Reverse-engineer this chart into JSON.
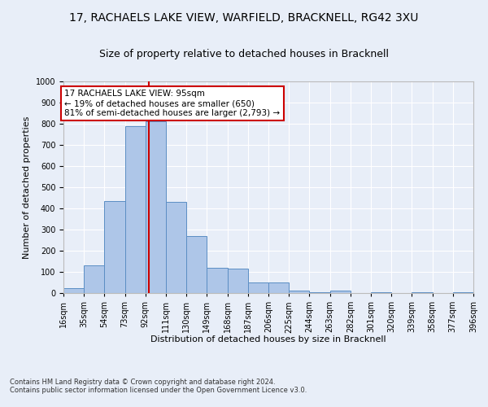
{
  "title1": "17, RACHAELS LAKE VIEW, WARFIELD, BRACKNELL, RG42 3XU",
  "title2": "Size of property relative to detached houses in Bracknell",
  "xlabel": "Distribution of detached houses by size in Bracknell",
  "ylabel": "Number of detached properties",
  "bin_edges": [
    16,
    35,
    54,
    73,
    92,
    111,
    130,
    149,
    168,
    187,
    206,
    225,
    244,
    263,
    282,
    301,
    320,
    339,
    358,
    377,
    396
  ],
  "bin_heights": [
    25,
    130,
    435,
    790,
    810,
    430,
    270,
    120,
    115,
    50,
    50,
    10,
    5,
    10,
    0,
    5,
    0,
    5,
    0,
    5
  ],
  "bar_color": "#aec6e8",
  "bar_edge_color": "#5b8ec4",
  "property_size": 95,
  "red_line_color": "#cc0000",
  "annotation_text": "17 RACHAELS LAKE VIEW: 95sqm\n← 19% of detached houses are smaller (650)\n81% of semi-detached houses are larger (2,793) →",
  "annotation_box_color": "#ffffff",
  "annotation_box_edge": "#cc0000",
  "ylim": [
    0,
    1000
  ],
  "yticks": [
    0,
    100,
    200,
    300,
    400,
    500,
    600,
    700,
    800,
    900,
    1000
  ],
  "tick_labels": [
    "16sqm",
    "35sqm",
    "54sqm",
    "73sqm",
    "92sqm",
    "111sqm",
    "130sqm",
    "149sqm",
    "168sqm",
    "187sqm",
    "206sqm",
    "225sqm",
    "244sqm",
    "263sqm",
    "282sqm",
    "301sqm",
    "320sqm",
    "339sqm",
    "358sqm",
    "377sqm",
    "396sqm"
  ],
  "footer_text": "Contains HM Land Registry data © Crown copyright and database right 2024.\nContains public sector information licensed under the Open Government Licence v3.0.",
  "bg_color": "#e8eef8",
  "plot_bg_color": "#e8eef8",
  "title1_fontsize": 10,
  "title2_fontsize": 9,
  "ylabel_fontsize": 8,
  "xlabel_fontsize": 8,
  "tick_fontsize": 7,
  "footer_fontsize": 6,
  "ann_fontsize": 7.5
}
